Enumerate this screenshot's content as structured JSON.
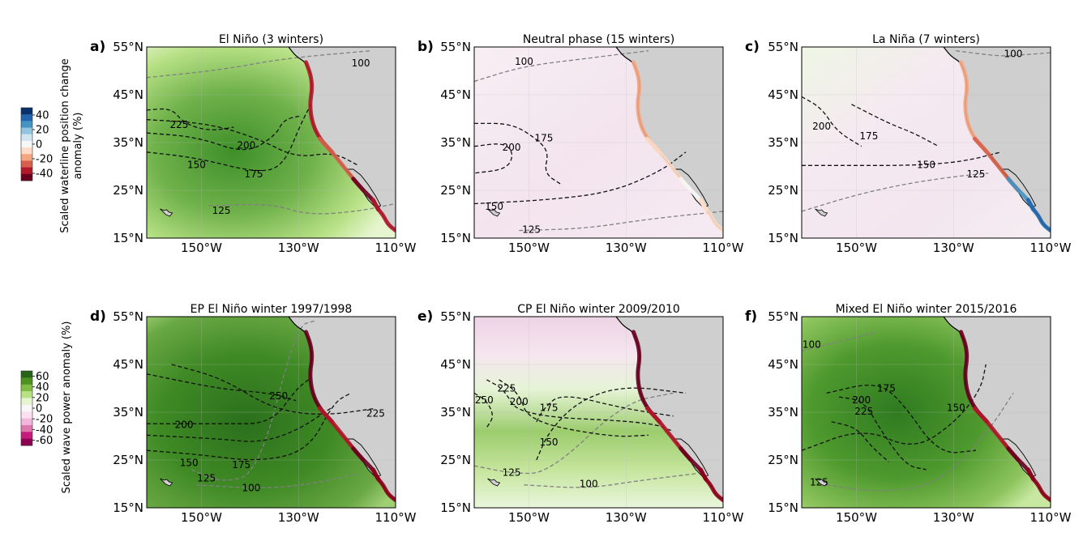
{
  "figure": {
    "colorbar_top": {
      "label_lines": [
        "Scaled waterline position change",
        "anomaly (%)"
      ],
      "ticks": [
        "40",
        "20",
        "0",
        "-20",
        "-40"
      ],
      "colors": [
        "#08306b",
        "#2166ac",
        "#4393c3",
        "#92c5de",
        "#d1e5f0",
        "#f7f7f7",
        "#fddbc7",
        "#f4a582",
        "#d6604d",
        "#b2182b",
        "#67001f"
      ]
    },
    "colorbar_bottom": {
      "label": "Scaled wave power anomaly (%)",
      "ticks": [
        "60",
        "40",
        "20",
        "0",
        "-20",
        "-40",
        "-60"
      ],
      "colors": [
        "#276419",
        "#4d9221",
        "#7fbc41",
        "#b8e186",
        "#e6f5d0",
        "#f7f7f7",
        "#fde0ef",
        "#f1b6da",
        "#de77ae",
        "#c51b7d",
        "#8e0152"
      ]
    },
    "lat_ticks": [
      "55°N",
      "45°N",
      "35°N",
      "25°N",
      "15°N"
    ],
    "lon_ticks": [
      "150°W",
      "130°W",
      "110°W"
    ],
    "panels": [
      {
        "letter": "a)",
        "title": "El Niño  (3 winters)",
        "background": "green_strong_offshore",
        "coast_anomaly": "negative",
        "contours": [
          {
            "level": "100",
            "style": "gray"
          },
          {
            "level": "125",
            "style": "gray"
          },
          {
            "level": "150",
            "style": "black"
          },
          {
            "level": "175",
            "style": "black"
          },
          {
            "level": "200",
            "style": "black"
          },
          {
            "level": "225",
            "style": "black"
          }
        ]
      },
      {
        "letter": "b)",
        "title": "Neutral phase  (15 winters)",
        "background": "light_pink",
        "coast_anomaly": "near_zero",
        "contours": [
          {
            "level": "100",
            "style": "gray"
          },
          {
            "level": "125",
            "style": "gray"
          },
          {
            "level": "150",
            "style": "black"
          },
          {
            "level": "175",
            "style": "black"
          },
          {
            "level": "200",
            "style": "black"
          }
        ]
      },
      {
        "letter": "c)",
        "title": "La Niña  (7 winters)",
        "background": "light_pink_green",
        "coast_anomaly": "positive_south",
        "contours": [
          {
            "level": "100",
            "style": "gray"
          },
          {
            "level": "125",
            "style": "gray"
          },
          {
            "level": "150",
            "style": "black"
          },
          {
            "level": "175",
            "style": "black"
          },
          {
            "level": "200",
            "style": "black"
          }
        ]
      },
      {
        "letter": "d)",
        "title": "EP El Niño winter 1997/1998",
        "background": "green_very_strong",
        "coast_anomaly": "strong_negative",
        "contours": [
          {
            "level": "100",
            "style": "gray"
          },
          {
            "level": "125",
            "style": "gray"
          },
          {
            "level": "150",
            "style": "black"
          },
          {
            "level": "175",
            "style": "black"
          },
          {
            "level": "200",
            "style": "black"
          },
          {
            "level": "225",
            "style": "black"
          },
          {
            "level": "250",
            "style": "black"
          }
        ]
      },
      {
        "letter": "e)",
        "title": "CP El Niño winter 2009/2010",
        "background": "pink_north_green_south",
        "coast_anomaly": "strong_negative",
        "contours": [
          {
            "level": "100",
            "style": "gray"
          },
          {
            "level": "125",
            "style": "gray"
          },
          {
            "level": "150",
            "style": "black"
          },
          {
            "level": "175",
            "style": "black"
          },
          {
            "level": "200",
            "style": "black"
          },
          {
            "level": "225",
            "style": "black"
          },
          {
            "level": "250",
            "style": "black"
          }
        ]
      },
      {
        "letter": "f)",
        "title": "Mixed El Niño winter 2015/2016",
        "background": "green_strong",
        "coast_anomaly": "strong_negative",
        "contours": [
          {
            "level": "100",
            "style": "gray"
          },
          {
            "level": "125",
            "style": "gray"
          },
          {
            "level": "150",
            "style": "black"
          },
          {
            "level": "175",
            "style": "black"
          },
          {
            "level": "200",
            "style": "black"
          },
          {
            "level": "225",
            "style": "black"
          }
        ]
      }
    ]
  }
}
